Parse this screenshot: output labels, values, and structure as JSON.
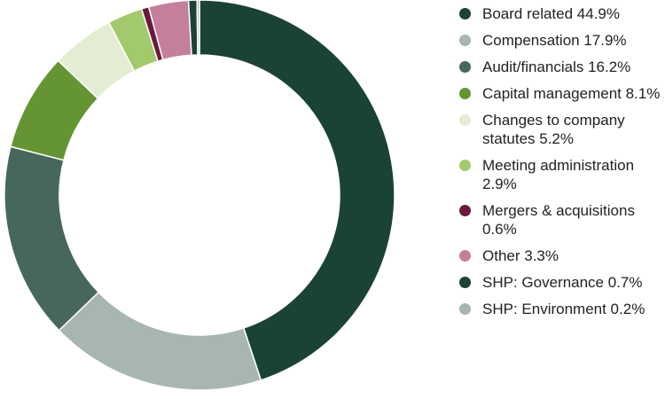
{
  "chart_data": {
    "type": "pie",
    "donut": true,
    "legend_position": "right",
    "slices": [
      {
        "label": "Board related 44.9%",
        "value": 44.9,
        "color": "#1a4235"
      },
      {
        "label": "Compensation 17.9%",
        "value": 17.9,
        "color": "#a8b6b0"
      },
      {
        "label": "Audit/financials 16.2%",
        "value": 16.2,
        "color": "#47675d"
      },
      {
        "label": "Capital management 8.1%",
        "value": 8.1,
        "color": "#659533"
      },
      {
        "label": "Changes to company statutes 5.2%",
        "value": 5.2,
        "color": "#e3edd4"
      },
      {
        "label": "Meeting administration 2.9%",
        "value": 2.9,
        "color": "#a2ca6d"
      },
      {
        "label": "Mergers & acquisitions 0.6%",
        "value": 0.6,
        "color": "#6b1a3c"
      },
      {
        "label": "Other 3.3%",
        "value": 3.3,
        "color": "#c47f9c"
      },
      {
        "label": "SHP: Governance 0.7%",
        "value": 0.7,
        "color": "#1a4235"
      },
      {
        "label": "SHP: Environment 0.2%",
        "value": 0.2,
        "color": "#a8b6b0"
      }
    ]
  }
}
